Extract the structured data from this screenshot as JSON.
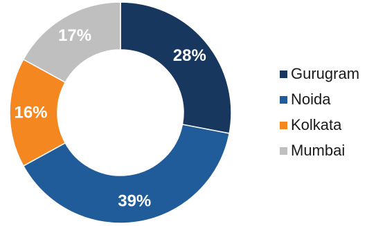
{
  "chart_data": {
    "type": "pie",
    "variant": "donut",
    "categories": [
      "Gurugram",
      "Noida",
      "Kolkata",
      "Mumbai"
    ],
    "values": [
      28,
      39,
      16,
      17
    ],
    "labels": [
      "28%",
      "39%",
      "16%",
      "17%"
    ],
    "colors": [
      "#17375e",
      "#1f5c99",
      "#f4871f",
      "#bfbfbf"
    ],
    "legend_position": "right",
    "start": "12 o'clock, clockwise"
  }
}
